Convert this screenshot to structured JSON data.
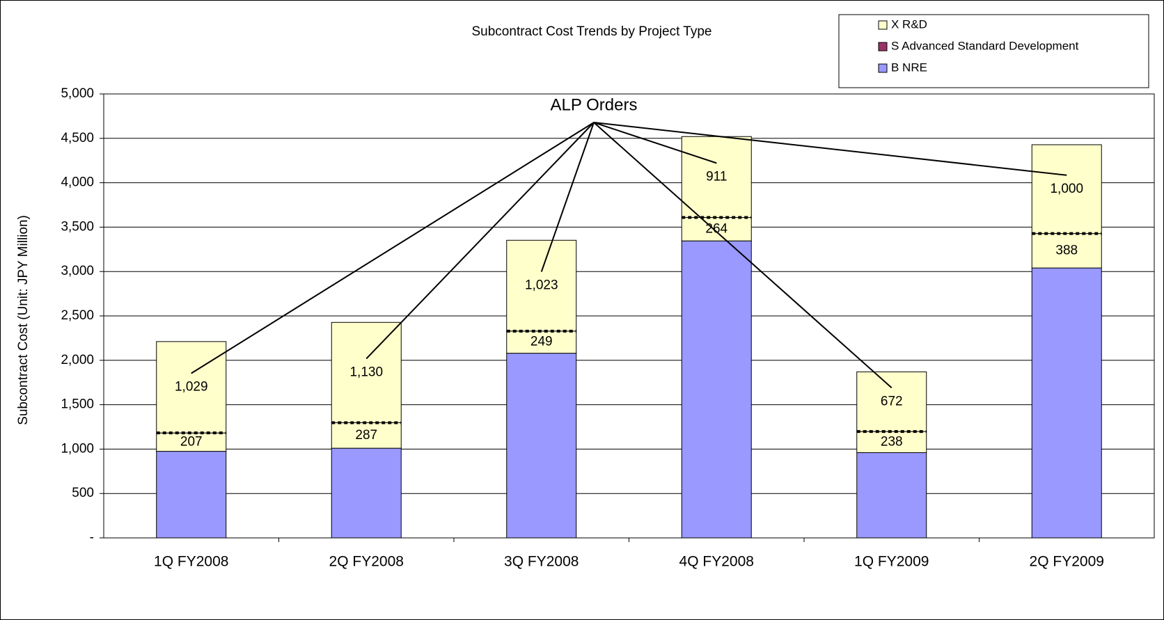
{
  "chart_data": {
    "type": "stacked_bar",
    "title": "Subcontract Cost Trends by Project Type",
    "y_label": "Subcontract Cost (Unit: JPY Million)",
    "annotation": "ALP Orders",
    "categories": [
      "1Q FY2008",
      "2Q FY2008",
      "3Q FY2008",
      "4Q FY2008",
      "1Q FY2009",
      "2Q FY2009"
    ],
    "series": [
      {
        "name": "B NRE",
        "color": "#9999ff",
        "values": [
          975,
          1010,
          2080,
          3345,
          960,
          3040
        ]
      },
      {
        "name": "S Advanced Standard Development",
        "color": "#993366",
        "values": [
          0,
          0,
          0,
          0,
          0,
          0
        ]
      },
      {
        "name": "X R&D",
        "color": "#ffffcc",
        "values": [
          [
            207,
            1029
          ],
          [
            287,
            1130
          ],
          [
            249,
            1023
          ],
          [
            264,
            911
          ],
          [
            238,
            672
          ],
          [
            388,
            1000
          ]
        ],
        "value_labels": [
          [
            "207",
            "1,029"
          ],
          [
            "287",
            "1,130"
          ],
          [
            "249",
            "1,023"
          ],
          [
            "264",
            "911"
          ],
          [
            "238",
            "672"
          ],
          [
            "388",
            "1,000"
          ]
        ]
      }
    ],
    "ylim": [
      0,
      5000
    ],
    "yticks": [
      {
        "value": 0,
        "label": "-"
      },
      500,
      {
        "value": 1000,
        "label": "1,000"
      },
      {
        "value": 1500,
        "label": "1,500"
      },
      {
        "value": 2000,
        "label": "2,000"
      },
      {
        "value": 2500,
        "label": "2,500"
      },
      {
        "value": 3000,
        "label": "3,000"
      },
      {
        "value": 3500,
        "label": "3,500"
      },
      {
        "value": 4000,
        "label": "4,000"
      },
      {
        "value": 4500,
        "label": "4,500"
      },
      {
        "value": 5000,
        "label": "5,000"
      }
    ],
    "grid": true,
    "legend": "top-right"
  }
}
